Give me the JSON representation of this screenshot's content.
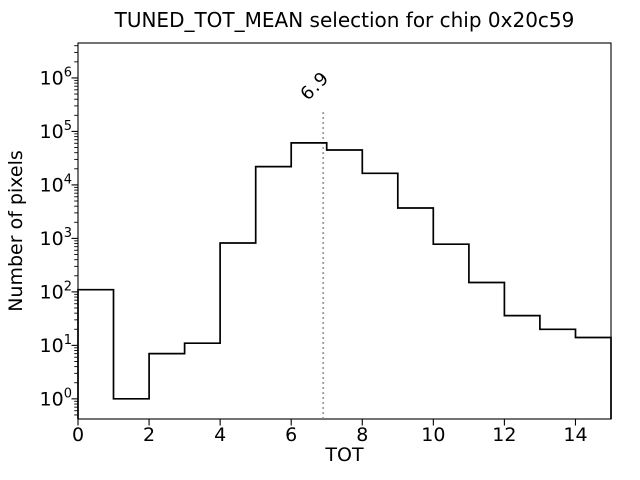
{
  "window": {
    "background": "#ffffff"
  },
  "chart_data": {
    "type": "bar",
    "style": "step-histogram",
    "title": "TUNED_TOT_MEAN selection for chip 0x20c59",
    "xlabel": "TOT",
    "ylabel": "Number of pixels",
    "yscale": "log",
    "grid": false,
    "legend": null,
    "xlim": [
      0,
      15
    ],
    "ylim": [
      0.42,
      4500000
    ],
    "bin_edges": [
      0,
      1,
      2,
      3,
      4,
      5,
      6,
      7,
      8,
      9,
      10,
      11,
      12,
      13,
      14,
      15
    ],
    "counts": [
      110,
      1,
      7,
      11,
      820,
      22000,
      61000,
      45000,
      16500,
      3700,
      780,
      150,
      36,
      20,
      14
    ],
    "xticks": [
      0,
      2,
      4,
      6,
      8,
      10,
      12,
      14
    ],
    "ytick_exponents": [
      0,
      1,
      2,
      3,
      4,
      5,
      6
    ],
    "line_color": "#000000",
    "axis_color": "#000000",
    "vline": {
      "x": 6.9,
      "label": "6.9",
      "color": "#8f8f8f",
      "style": "dotted",
      "top_value": 230000
    }
  }
}
